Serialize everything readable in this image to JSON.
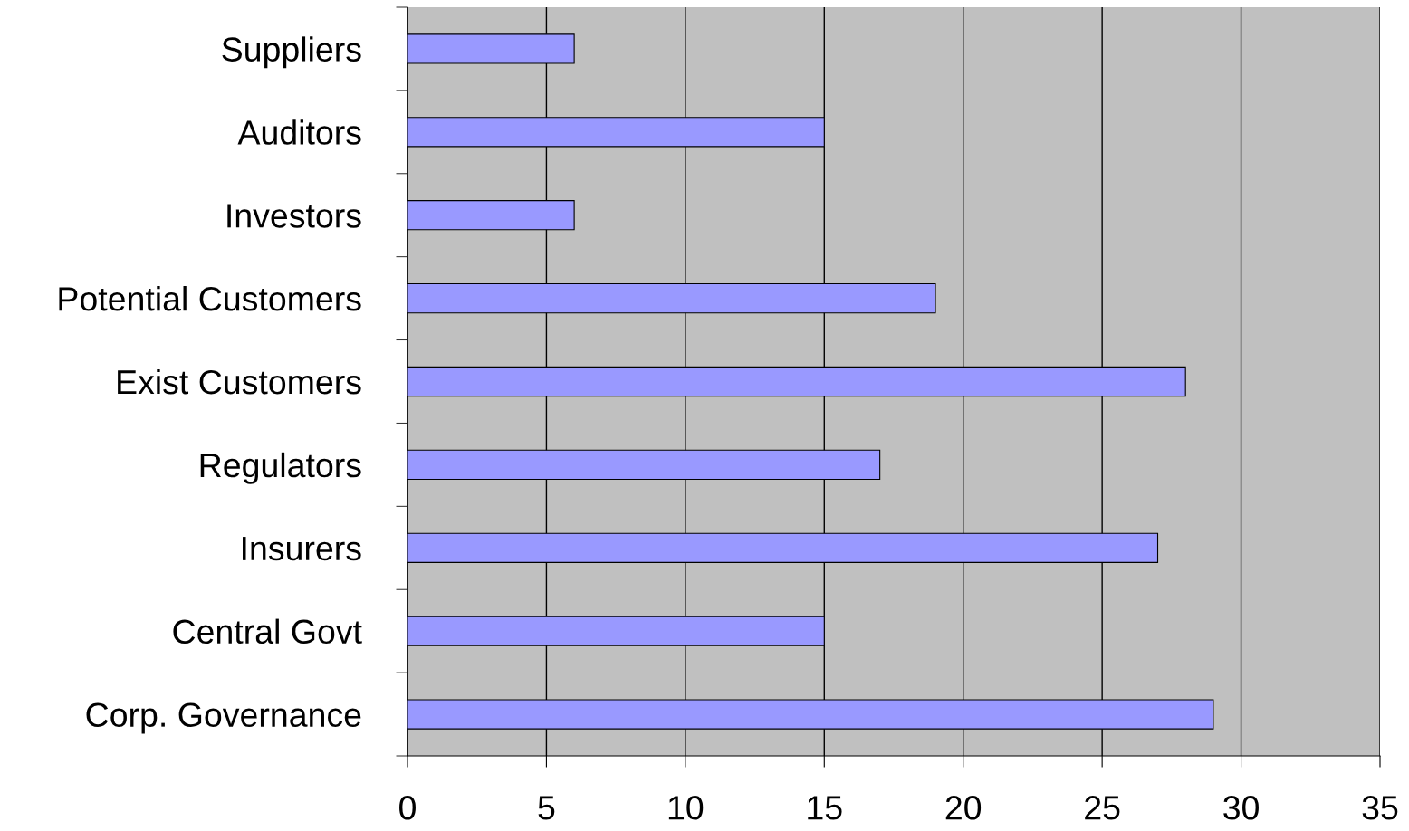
{
  "chart_data": {
    "type": "bar",
    "orientation": "horizontal",
    "categories": [
      "Suppliers",
      "Auditors",
      "Investors",
      "Potential Customers",
      "Exist Customers",
      "Regulators",
      "Insurers",
      "Central Govt",
      "Corp. Governance"
    ],
    "values": [
      6,
      15,
      6,
      19,
      28,
      17,
      27,
      15,
      29
    ],
    "color": "#9999ff",
    "xlim": [
      0,
      35
    ],
    "xticks": [
      0,
      5,
      10,
      15,
      20,
      25,
      30,
      35
    ],
    "grid": "x"
  }
}
